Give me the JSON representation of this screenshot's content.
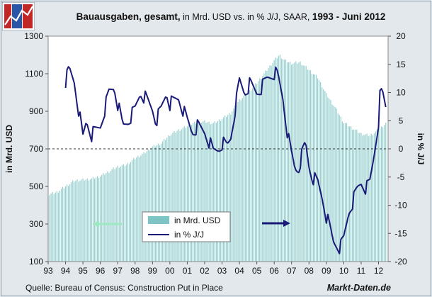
{
  "chart_data": {
    "type": "bar+line",
    "title": {
      "part1": "Bauausgaben, gesamt,",
      "part2": " in Mrd. USD vs. in % J/J, SAAR, ",
      "part3": "1993 - Juni 2012"
    },
    "ylabel_left": "in Mrd. USD",
    "ylabel_right": "in % J/J",
    "ylim_left": [
      100,
      1300
    ],
    "ylim_right": [
      -20,
      20
    ],
    "yticks_left": [
      "1300",
      "1100",
      "900",
      "700",
      "500",
      "300",
      "100"
    ],
    "yticks_right": [
      "20",
      "15",
      "10",
      "5",
      "0",
      "-5",
      "-10",
      "-15",
      "-20"
    ],
    "xticks": [
      "93",
      "94",
      "95",
      "96",
      "97",
      "98",
      "99",
      "00",
      "01",
      "02",
      "03",
      "04",
      "05",
      "06",
      "07",
      "08",
      "09",
      "10",
      "11",
      "12"
    ],
    "reference_line": {
      "axis": "right",
      "value": 0,
      "style": "dashed"
    },
    "legend": [
      "in Mrd. USD",
      "in % J/J"
    ],
    "series": [
      {
        "name": "in Mrd. USD",
        "type": "bar",
        "axis": "left",
        "color": "#7fc4c4",
        "anchors": [
          [
            1993.0,
            455
          ],
          [
            1993.5,
            470
          ],
          [
            1994.0,
            500
          ],
          [
            1994.5,
            530
          ],
          [
            1995.0,
            535
          ],
          [
            1995.5,
            540
          ],
          [
            1996.0,
            555
          ],
          [
            1996.5,
            580
          ],
          [
            1997.0,
            605
          ],
          [
            1997.5,
            615
          ],
          [
            1998.0,
            650
          ],
          [
            1998.5,
            675
          ],
          [
            1999.0,
            710
          ],
          [
            1999.5,
            730
          ],
          [
            2000.0,
            775
          ],
          [
            2000.5,
            800
          ],
          [
            2001.0,
            820
          ],
          [
            2001.5,
            840
          ],
          [
            2002.0,
            845
          ],
          [
            2002.5,
            835
          ],
          [
            2003.0,
            860
          ],
          [
            2003.5,
            890
          ],
          [
            2004.0,
            960
          ],
          [
            2004.5,
            1000
          ],
          [
            2005.0,
            1050
          ],
          [
            2005.5,
            1110
          ],
          [
            2006.0,
            1170
          ],
          [
            2006.3,
            1200
          ],
          [
            2006.6,
            1170
          ],
          [
            2007.0,
            1155
          ],
          [
            2007.5,
            1160
          ],
          [
            2008.0,
            1120
          ],
          [
            2008.5,
            1080
          ],
          [
            2009.0,
            990
          ],
          [
            2009.5,
            920
          ],
          [
            2010.0,
            840
          ],
          [
            2010.5,
            810
          ],
          [
            2011.0,
            780
          ],
          [
            2011.5,
            770
          ],
          [
            2012.0,
            800
          ],
          [
            2012.45,
            840
          ]
        ]
      },
      {
        "name": "in % J/J",
        "type": "line",
        "axis": "right",
        "color": "#1a1a78",
        "anchors": [
          [
            1994.0,
            12
          ],
          [
            1994.2,
            14
          ],
          [
            1994.5,
            12
          ],
          [
            1994.8,
            6
          ],
          [
            1995.0,
            2
          ],
          [
            1995.2,
            5
          ],
          [
            1995.5,
            2.5
          ],
          [
            1996.0,
            4
          ],
          [
            1996.5,
            10
          ],
          [
            1996.8,
            11
          ],
          [
            1997.0,
            8
          ],
          [
            1997.3,
            4
          ],
          [
            1997.6,
            5
          ],
          [
            1998.0,
            7
          ],
          [
            1998.3,
            10
          ],
          [
            1998.6,
            9
          ],
          [
            1999.0,
            7
          ],
          [
            1999.2,
            5
          ],
          [
            1999.5,
            7
          ],
          [
            1999.8,
            10
          ],
          [
            2000.0,
            8
          ],
          [
            2000.5,
            9
          ],
          [
            2001.0,
            5
          ],
          [
            2001.3,
            3
          ],
          [
            2001.6,
            4
          ],
          [
            2002.0,
            3
          ],
          [
            2002.3,
            1
          ],
          [
            2002.5,
            -0.5
          ],
          [
            2002.8,
            0
          ],
          [
            2003.0,
            1
          ],
          [
            2003.3,
            0.5
          ],
          [
            2003.5,
            2
          ],
          [
            2003.8,
            8
          ],
          [
            2004.0,
            12
          ],
          [
            2004.3,
            10
          ],
          [
            2004.6,
            11.5
          ],
          [
            2005.0,
            10
          ],
          [
            2005.3,
            11
          ],
          [
            2005.6,
            12.5
          ],
          [
            2006.0,
            13.5
          ],
          [
            2006.2,
            13
          ],
          [
            2006.5,
            9
          ],
          [
            2006.8,
            2
          ],
          [
            2007.0,
            -1
          ],
          [
            2007.2,
            -3.5
          ],
          [
            2007.4,
            -3.5
          ],
          [
            2007.6,
            -1
          ],
          [
            2007.8,
            1
          ],
          [
            2008.0,
            -3
          ],
          [
            2008.2,
            -5
          ],
          [
            2008.5,
            -6
          ],
          [
            2008.8,
            -9
          ],
          [
            2009.0,
            -12
          ],
          [
            2009.2,
            -14
          ],
          [
            2009.4,
            -16.5
          ],
          [
            2009.6,
            -17
          ],
          [
            2009.8,
            -17.5
          ],
          [
            2010.0,
            -16
          ],
          [
            2010.3,
            -11
          ],
          [
            2010.5,
            -9.5
          ],
          [
            2010.8,
            -7
          ],
          [
            2011.0,
            -6
          ],
          [
            2011.3,
            -7
          ],
          [
            2011.5,
            -6
          ],
          [
            2011.7,
            -2
          ],
          [
            2012.0,
            5
          ],
          [
            2012.1,
            10
          ],
          [
            2012.25,
            9.5
          ],
          [
            2012.45,
            7
          ]
        ]
      }
    ],
    "source": "Quelle: Bureau of Census: Construction Put in Place",
    "brand": "Markt-Daten.de"
  }
}
